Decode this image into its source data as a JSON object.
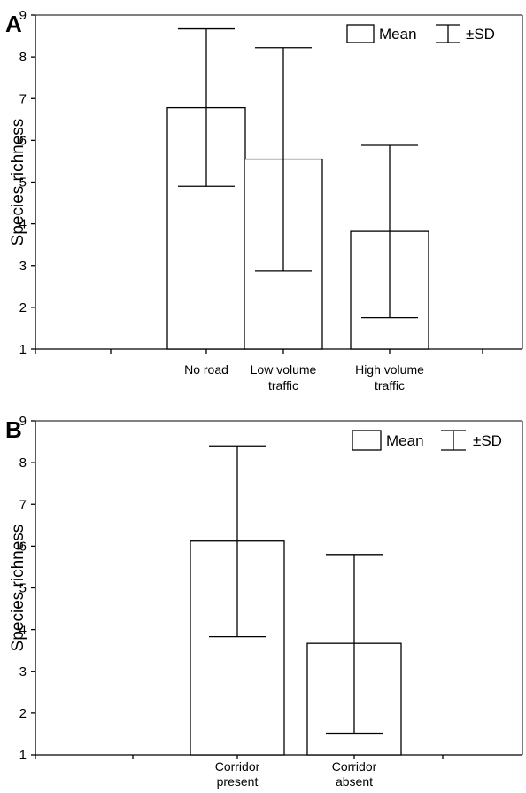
{
  "chart_data": [
    {
      "panel_label": "A",
      "type": "bar",
      "ylabel": "Species richness",
      "ylim": [
        1,
        9
      ],
      "yticks": [
        "1",
        "2",
        "3",
        "4",
        "5",
        "6",
        "7",
        "8",
        "9"
      ],
      "categories": [
        {
          "lines": [
            "No road"
          ]
        },
        {
          "lines": [
            "Low volume",
            "traffic"
          ]
        },
        {
          "lines": [
            "High volume",
            "traffic"
          ]
        }
      ],
      "values": [
        6.78,
        5.55,
        3.82
      ],
      "sd_lower": [
        4.9,
        2.87,
        1.75
      ],
      "sd_upper": [
        8.67,
        8.22,
        5.88
      ],
      "legend": {
        "mean_label": "Mean",
        "sd_label": "±SD",
        "position": "top-right"
      }
    },
    {
      "panel_label": "B",
      "type": "bar",
      "ylabel": "Species richness",
      "ylim": [
        1,
        9
      ],
      "yticks": [
        "1",
        "2",
        "3",
        "4",
        "5",
        "6",
        "7",
        "8",
        "9"
      ],
      "categories": [
        {
          "lines": [
            "Corridor",
            "present"
          ]
        },
        {
          "lines": [
            "Corridor",
            "absent"
          ]
        }
      ],
      "values": [
        6.12,
        3.67
      ],
      "sd_lower": [
        3.83,
        1.52
      ],
      "sd_upper": [
        8.4,
        5.8
      ],
      "legend": {
        "mean_label": "Mean",
        "sd_label": "±SD",
        "position": "top-right"
      }
    }
  ]
}
